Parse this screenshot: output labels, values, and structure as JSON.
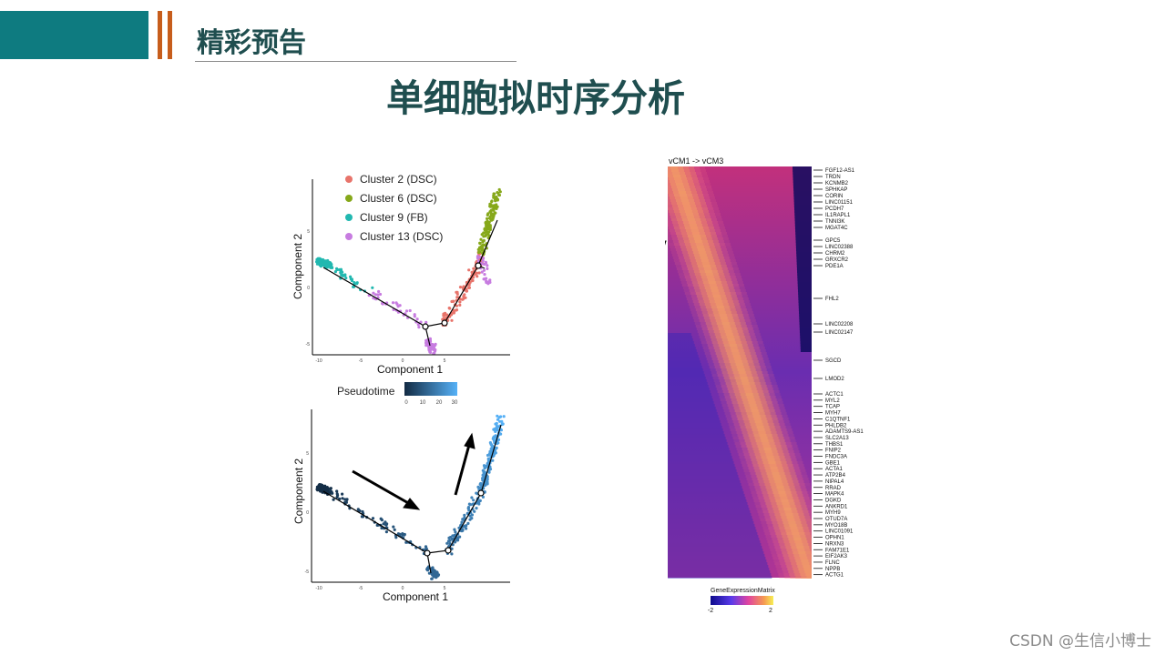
{
  "slide": {
    "header_title": "精彩预告",
    "main_title": "单细胞拟时序分析",
    "watermark": "CSDN @生信小博士"
  },
  "colors": {
    "header_teal": "#0e7b80",
    "accent_orange": "#c75d1c",
    "title_text": "#1f4e4f"
  },
  "trajectory_cluster_plot": {
    "legend": [
      {
        "label": "Cluster 2 (DSC)",
        "color": "#e8746b"
      },
      {
        "label": "Cluster 6 (DSC)",
        "color": "#86a81a"
      },
      {
        "label": "Cluster 9 (FB)",
        "color": "#22b8b0"
      },
      {
        "label": "Cluster 13 (DSC)",
        "color": "#c77ce0"
      }
    ],
    "xlabel": "Component 1",
    "ylabel": "Component 2",
    "x_ticks": [
      "-10",
      "-5",
      "0",
      "5"
    ],
    "y_ticks": [
      "5",
      "0",
      "-5"
    ]
  },
  "trajectory_pseudotime_plot": {
    "legend_title": "Pseudotime",
    "legend_ticks": [
      "0",
      "10",
      "20",
      "30"
    ],
    "xlabel": "Component 1",
    "ylabel": "Component 2",
    "x_ticks": [
      "-10",
      "-5",
      "0",
      "5"
    ],
    "y_ticks": [
      "5",
      "0",
      "-5"
    ]
  },
  "heatmap": {
    "title": "vCM1 -> vCM3",
    "legend_title": "GeneExpressionMatrix",
    "legend_ticks": [
      "-2",
      "2"
    ],
    "genes": [
      "FGF12-AS1",
      "TRDN",
      "KCNMB2",
      "SPHKAP",
      "CORIN",
      "LINC01151",
      "PCDH7",
      "IL1RAPL1",
      "TNNI3K",
      "MGAT4C",
      "GPC5",
      "LINC02388",
      "CHRM2",
      "GRXCR2",
      "PDE1A",
      "FHL2",
      "LINC02208",
      "LINC02147",
      "SGCD",
      "LMOD2",
      "ACTC1",
      "MYL2",
      "TCAP",
      "MYH7",
      "C1QTNF1",
      "PHLDB2",
      "ADAMTS9-AS1",
      "SLC2A13",
      "THBS1",
      "FNIP2",
      "FNDC3A",
      "GBE1",
      "ACTA1",
      "ATP2B4",
      "NIPAL4",
      "RRAD",
      "MAPK4",
      "DGKD",
      "ANKRD1",
      "MYH9",
      "OTUD7A",
      "MYO18B",
      "LINC01091",
      "OPHN1",
      "NRXN3",
      "FAM71E1",
      "EIF2AK3",
      "FLNC",
      "NPPB",
      "ACTG1"
    ]
  }
}
